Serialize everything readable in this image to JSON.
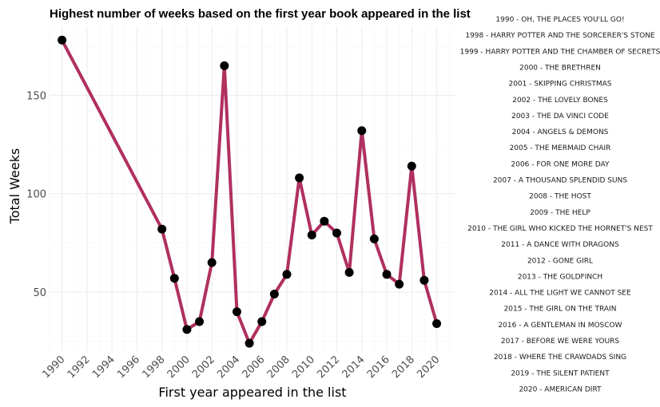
{
  "chart_data": {
    "type": "line",
    "title": "Highest number of weeks based on the first year book appeared in the list",
    "xlabel": "First year appeared in the list",
    "ylabel": "Total Weeks",
    "xlim": [
      1989,
      2021.5
    ],
    "ylim": [
      20,
      185
    ],
    "x_ticks": [
      1990,
      1992,
      1994,
      1996,
      1998,
      2000,
      2002,
      2004,
      2006,
      2008,
      2010,
      2012,
      2014,
      2016,
      2018,
      2020
    ],
    "y_ticks": [
      50,
      100,
      150
    ],
    "grid": true,
    "line_color": "#b03060",
    "point_color": "#000000",
    "series": [
      {
        "x": [
          1990,
          1998,
          1999,
          2000,
          2001,
          2002,
          2003,
          2004,
          2005,
          2006,
          2007,
          2008,
          2009,
          2010,
          2011,
          2012,
          2013,
          2014,
          2015,
          2016,
          2017,
          2018,
          2019,
          2020
        ],
        "y": [
          178,
          82,
          57,
          31,
          35,
          65,
          165,
          40,
          24,
          35,
          49,
          59,
          108,
          79,
          86,
          80,
          60,
          132,
          77,
          59,
          54,
          114,
          56,
          34
        ]
      }
    ],
    "annotations": [
      "1990 - OH, THE PLACES YOU'LL GO!",
      "1998 - HARRY POTTER AND THE SORCERER'S STONE",
      "1999 - HARRY POTTER AND THE CHAMBER OF SECRETS",
      "2000 - THE BRETHREN",
      "2001 - SKIPPING CHRISTMAS",
      "2002 - THE LOVELY BONES",
      "2003 - THE DA VINCI CODE",
      "2004 - ANGELS & DEMONS",
      "2005 - THE MERMAID CHAIR",
      "2006 - FOR ONE MORE DAY",
      "2007 - A THOUSAND SPLENDID SUNS",
      "2008 - THE HOST",
      "2009 - THE HELP",
      "2010 - THE GIRL WHO KICKED THE HORNET'S NEST",
      "2011 - A DANCE WITH DRAGONS",
      "2012 - GONE GIRL",
      "2013 - THE GOLDFINCH",
      "2014 - ALL THE LIGHT WE CANNOT SEE",
      "2015 - THE GIRL ON THE TRAIN",
      "2016 - A GENTLEMAN IN MOSCOW",
      "2017 - BEFORE WE WERE YOURS",
      "2018 - WHERE THE CRAWDADS SING",
      "2019 - THE SILENT PATIENT",
      "2020 - AMERICAN DIRT"
    ]
  }
}
